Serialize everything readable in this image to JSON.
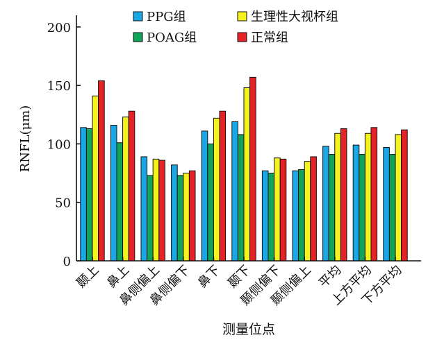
{
  "chart_data": {
    "type": "bar",
    "categories": [
      "颞上",
      "鼻上",
      "鼻侧偏上",
      "鼻侧偏下",
      "鼻下",
      "颞下",
      "颞侧偏下",
      "颞侧偏上",
      "平均",
      "上方平均",
      "下方平均"
    ],
    "series": [
      {
        "name": "PPG组",
        "color": "#1aa7e6",
        "values": [
          114,
          116,
          89,
          82,
          111,
          119,
          77,
          77,
          98,
          99,
          97
        ]
      },
      {
        "name": "POAG组",
        "color": "#12a35a",
        "values": [
          113,
          101,
          73,
          73,
          100,
          108,
          75,
          78,
          91,
          91,
          91
        ]
      },
      {
        "name": "生理性大视杯组",
        "color": "#f5f21e",
        "values": [
          141,
          123,
          87,
          75,
          122,
          148,
          88,
          85,
          109,
          109,
          108
        ]
      },
      {
        "name": "正常组",
        "color": "#e52326",
        "values": [
          154,
          128,
          86,
          77,
          128,
          157,
          87,
          89,
          113,
          114,
          112
        ]
      }
    ],
    "ylabel": "RNFL(μm)",
    "xlabel": "测量位点",
    "ylim": [
      0,
      210
    ],
    "yticks": [
      0,
      50,
      100,
      150,
      200
    ],
    "grid": false,
    "legend_position": "top"
  }
}
